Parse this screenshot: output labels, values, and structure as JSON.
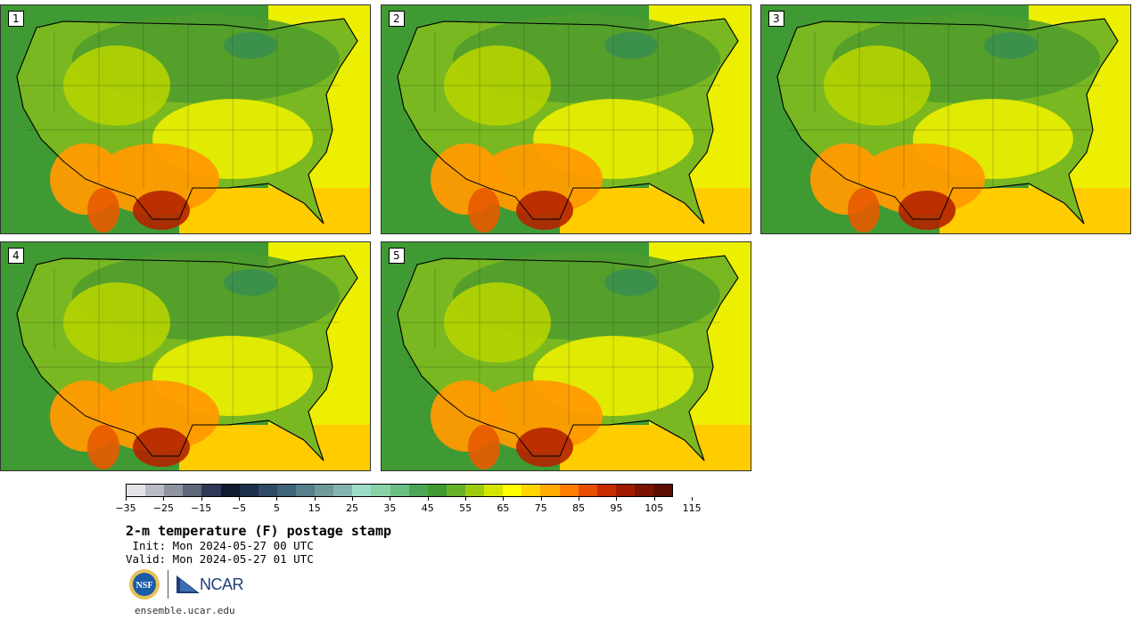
{
  "panels": [
    {
      "label": "1"
    },
    {
      "label": "2"
    },
    {
      "label": "3"
    },
    {
      "label": "4"
    },
    {
      "label": "5"
    }
  ],
  "colorbar": {
    "tick_labels": [
      "−35",
      "−25",
      "−15",
      "−5",
      "5",
      "15",
      "25",
      "35",
      "45",
      "55",
      "65",
      "75",
      "85",
      "95",
      "105",
      "115"
    ],
    "colors": [
      "#e4e4e8",
      "#b9bcc4",
      "#8e93a0",
      "#5e6679",
      "#2e3a55",
      "#101a30",
      "#1e2f4c",
      "#2f4a66",
      "#3f6378",
      "#577f8a",
      "#6e9a9c",
      "#84b4b0",
      "#9ddcc9",
      "#88d2a5",
      "#6cbf83",
      "#4ea456",
      "#3f9a33",
      "#67b128",
      "#9ccb10",
      "#d4e600",
      "#ffff00",
      "#ffd500",
      "#ffab00",
      "#ff7e00",
      "#e84e00",
      "#c52a00",
      "#a11a00",
      "#7c1200",
      "#5a0f00"
    ],
    "accent_map_colors": [
      "#4d9b2e",
      "#79b820",
      "#b5d400",
      "#ecef00",
      "#ffcc00",
      "#ff9a00",
      "#e85a00",
      "#b42300"
    ]
  },
  "title": "2-m temperature (F) postage stamp",
  "init": " Init: Mon 2024-05-27 00 UTC",
  "valid": "Valid: Mon 2024-05-27 01 UTC",
  "logo_nsf": "NSF",
  "logo_ncar": "NCAR",
  "url": "ensemble.ucar.edu"
}
